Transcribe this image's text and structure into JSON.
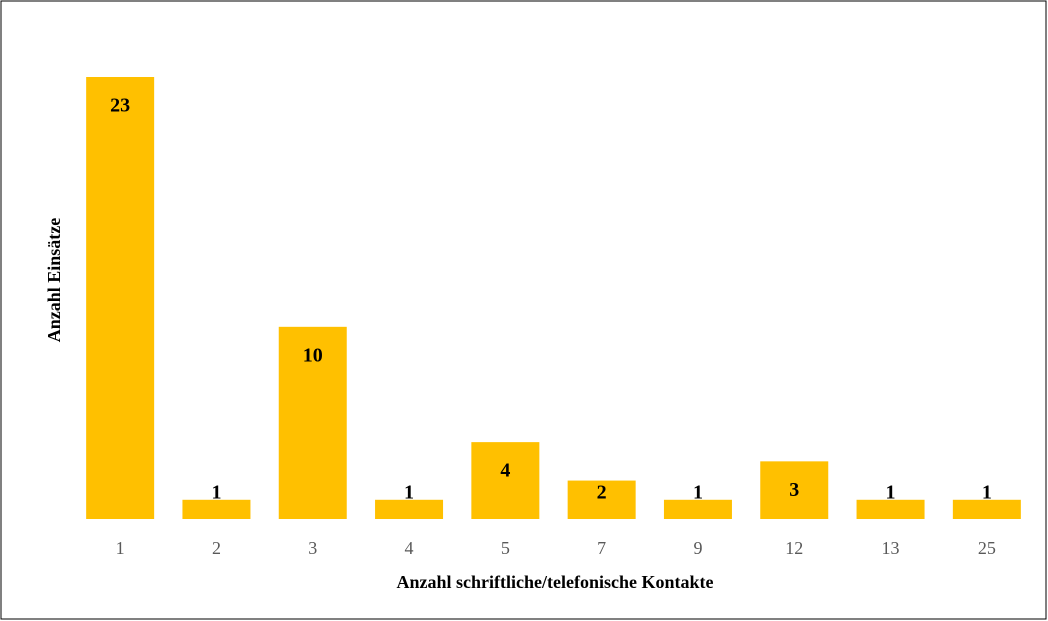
{
  "chart_data": {
    "type": "bar",
    "x_label": "Anzahl schriftliche/telefonische Kontakte",
    "y_label": "Anzahl Einsätze",
    "categories": [
      "1",
      "2",
      "3",
      "4",
      "5",
      "7",
      "9",
      "12",
      "13",
      "25"
    ],
    "values": [
      23,
      1,
      10,
      1,
      4,
      2,
      1,
      3,
      1,
      1
    ],
    "color": "#ffc000"
  }
}
